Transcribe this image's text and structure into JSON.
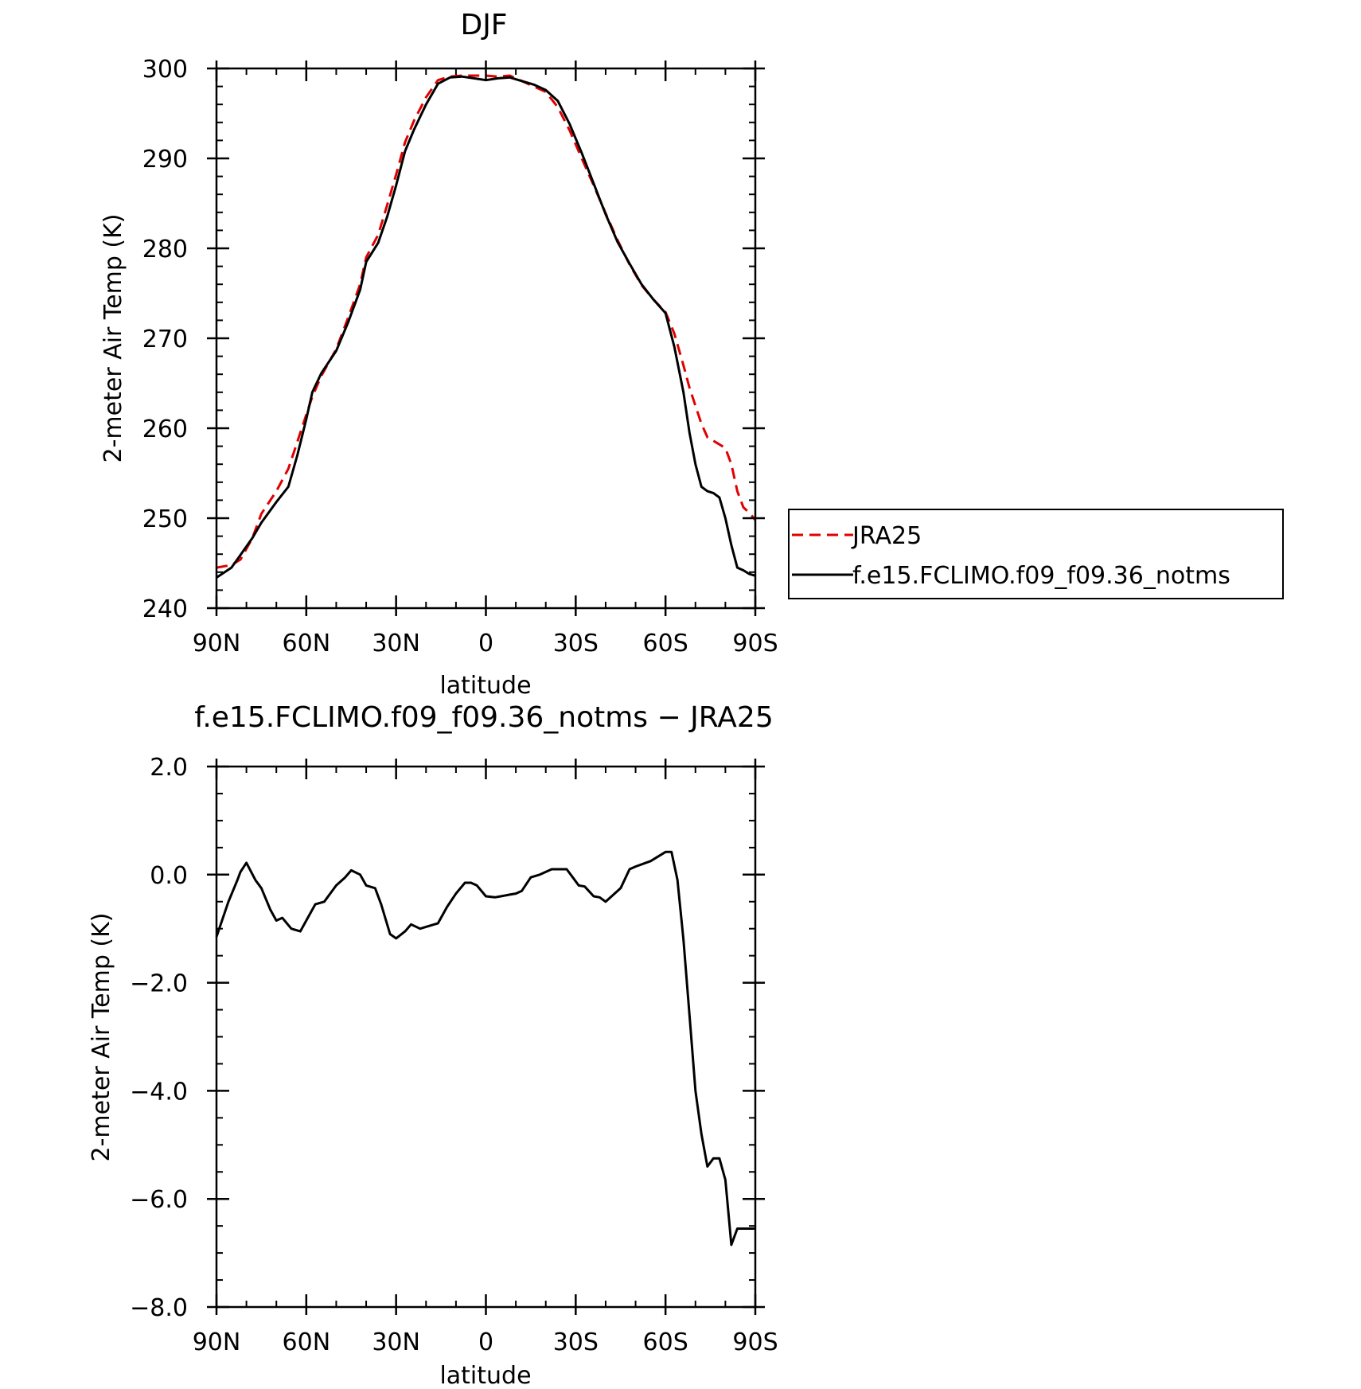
{
  "colors": {
    "jra": "#e00000",
    "model": "#000000"
  },
  "chart_data": [
    {
      "type": "line",
      "title": "DJF",
      "xlabel": "latitude",
      "ylabel": "2-meter Air Temp (K)",
      "xlim": [
        90,
        -90
      ],
      "ylim": [
        240,
        300
      ],
      "x_ticks": [
        {
          "v": 90,
          "label": "90N"
        },
        {
          "v": 60,
          "label": "60N"
        },
        {
          "v": 30,
          "label": "30N"
        },
        {
          "v": 0,
          "label": "0"
        },
        {
          "v": -30,
          "label": "30S"
        },
        {
          "v": -60,
          "label": "60S"
        },
        {
          "v": -90,
          "label": "90S"
        }
      ],
      "y_ticks": [
        {
          "v": 300,
          "label": "300"
        },
        {
          "v": 290,
          "label": "290"
        },
        {
          "v": 280,
          "label": "280"
        },
        {
          "v": 270,
          "label": "270"
        },
        {
          "v": 260,
          "label": "260"
        },
        {
          "v": 250,
          "label": "250"
        },
        {
          "v": 240,
          "label": "240"
        }
      ],
      "legend": {
        "placement": "right",
        "entries": [
          "JRA25",
          "f.e15.FCLIMO.f09_f09.36_notms"
        ]
      },
      "series": [
        {
          "name": "JRA25",
          "style": "dashed",
          "x": [
            90,
            85,
            82,
            78,
            75,
            70,
            66,
            63,
            60,
            58,
            55,
            50,
            46,
            42,
            40,
            36,
            33,
            30,
            27,
            24,
            20,
            16,
            12,
            8,
            4,
            0,
            -4,
            -8,
            -12,
            -16,
            -20,
            -24,
            -28,
            -32,
            -36,
            -40,
            -44,
            -48,
            -52,
            -56,
            -60,
            -63,
            -66,
            -68,
            -70,
            -72,
            -74,
            -76,
            -78,
            -80,
            -82,
            -84,
            -86,
            -88,
            -90
          ],
          "y": [
            244.5,
            244.8,
            245.4,
            247.8,
            250.5,
            253.0,
            255.5,
            258.5,
            261.5,
            263.5,
            265.8,
            268.8,
            272.3,
            276.0,
            279.0,
            281.5,
            284.8,
            288.2,
            291.8,
            294.2,
            296.8,
            298.7,
            299.1,
            299.2,
            299.2,
            299.2,
            299.1,
            299.2,
            298.6,
            298.0,
            297.4,
            295.7,
            293.1,
            290.0,
            287.0,
            283.9,
            280.9,
            278.2,
            275.9,
            274.3,
            272.9,
            270.5,
            267.0,
            264.5,
            262.5,
            260.5,
            259.0,
            258.6,
            258.2,
            257.8,
            256.0,
            253.0,
            251.2,
            250.6,
            249.8
          ]
        },
        {
          "name": "f.e15.FCLIMO.f09_f09.36_notms",
          "style": "solid",
          "x": [
            90,
            85,
            82,
            78,
            75,
            70,
            66,
            63,
            60,
            58,
            55,
            50,
            46,
            42,
            40,
            36,
            33,
            30,
            27,
            24,
            20,
            16,
            12,
            8,
            4,
            0,
            -4,
            -8,
            -12,
            -16,
            -20,
            -24,
            -28,
            -32,
            -36,
            -40,
            -44,
            -48,
            -52,
            -56,
            -60,
            -63,
            -66,
            -68,
            -70,
            -72,
            -74,
            -76,
            -78,
            -80,
            -82,
            -84,
            -86,
            -88,
            -90
          ],
          "y": [
            243.4,
            244.5,
            245.9,
            247.8,
            249.5,
            251.8,
            253.5,
            257.0,
            261.0,
            264.0,
            266.1,
            268.6,
            271.8,
            275.4,
            278.5,
            280.6,
            283.5,
            287.0,
            290.8,
            293.2,
            296.0,
            298.3,
            299.0,
            299.1,
            298.9,
            298.7,
            298.9,
            299.0,
            298.6,
            298.2,
            297.6,
            296.4,
            293.8,
            290.6,
            287.2,
            283.8,
            280.7,
            278.3,
            276.0,
            274.3,
            272.8,
            269.0,
            264.0,
            259.5,
            256.0,
            253.5,
            253.0,
            252.8,
            252.3,
            250.0,
            247.0,
            244.5,
            244.2,
            243.8,
            243.6
          ]
        }
      ]
    },
    {
      "type": "line",
      "title": "f.e15.FCLIMO.f09_f09.36_notms − JRA25",
      "xlabel": "latitude",
      "ylabel": "2-meter Air Temp (K)",
      "xlim": [
        90,
        -90
      ],
      "ylim": [
        -8,
        2
      ],
      "x_ticks": [
        {
          "v": 90,
          "label": "90N"
        },
        {
          "v": 60,
          "label": "60N"
        },
        {
          "v": 30,
          "label": "30N"
        },
        {
          "v": 0,
          "label": "0"
        },
        {
          "v": -30,
          "label": "30S"
        },
        {
          "v": -60,
          "label": "60S"
        },
        {
          "v": -90,
          "label": "90S"
        }
      ],
      "y_ticks": [
        {
          "v": 2,
          "label": "2.0"
        },
        {
          "v": 0,
          "label": "0.0"
        },
        {
          "v": -2,
          "label": "−2.0"
        },
        {
          "v": -4,
          "label": "−4.0"
        },
        {
          "v": -6,
          "label": "−6.0"
        },
        {
          "v": -8,
          "label": "−8.0"
        }
      ],
      "series": [
        {
          "style": "solid",
          "x": [
            90,
            86,
            83,
            82,
            80,
            77,
            75,
            72,
            70,
            68,
            65,
            62,
            60,
            57,
            54,
            50,
            47,
            45,
            42,
            40,
            37,
            35,
            32,
            30,
            27,
            25,
            22,
            19,
            16,
            13,
            10,
            7,
            5,
            3,
            0,
            -3,
            -5,
            -8,
            -10,
            -12,
            -15,
            -18,
            -22,
            -24,
            -27,
            -29,
            -31,
            -33,
            -36,
            -38,
            -40,
            -43,
            -45,
            -48,
            -50,
            -55,
            -60,
            -62,
            -64,
            -66,
            -68,
            -70,
            -72,
            -74,
            -76,
            -78,
            -80,
            -82,
            -84,
            -86,
            -88,
            -90
          ],
          "y": [
            -1.15,
            -0.5,
            -0.1,
            0.05,
            0.22,
            -0.1,
            -0.25,
            -0.65,
            -0.85,
            -0.8,
            -1.0,
            -1.05,
            -0.85,
            -0.55,
            -0.5,
            -0.2,
            -0.05,
            0.08,
            0.0,
            -0.2,
            -0.25,
            -0.55,
            -1.1,
            -1.18,
            -1.05,
            -0.92,
            -1.0,
            -0.95,
            -0.9,
            -0.6,
            -0.35,
            -0.15,
            -0.15,
            -0.2,
            -0.4,
            -0.42,
            -0.4,
            -0.37,
            -0.35,
            -0.3,
            -0.05,
            0.0,
            0.1,
            0.1,
            0.1,
            -0.05,
            -0.2,
            -0.22,
            -0.4,
            -0.42,
            -0.5,
            -0.35,
            -0.25,
            0.1,
            0.15,
            0.25,
            0.42,
            0.42,
            -0.1,
            -1.2,
            -2.6,
            -4.0,
            -4.8,
            -5.4,
            -5.25,
            -5.25,
            -5.65,
            -6.85,
            -6.55,
            -6.55,
            -6.55,
            -6.55
          ]
        }
      ]
    }
  ]
}
